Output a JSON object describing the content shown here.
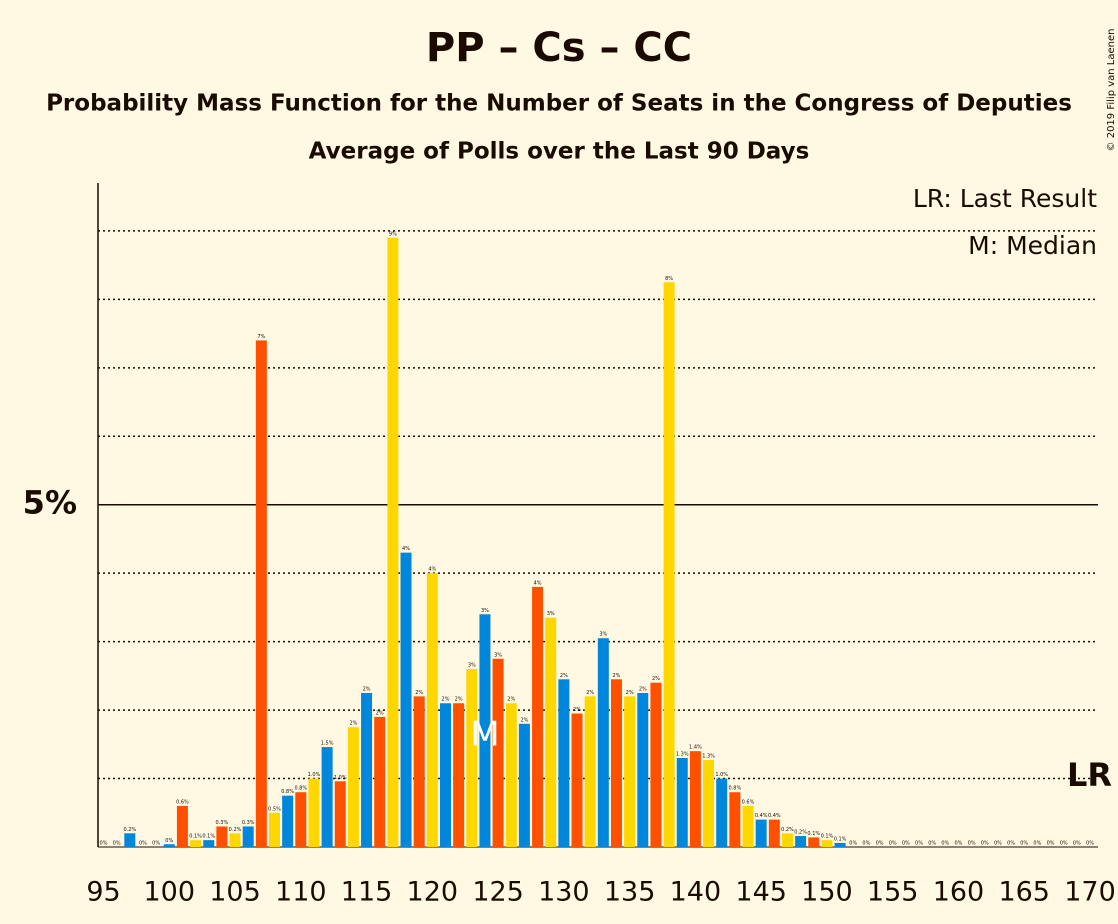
{
  "chart_data": {
    "type": "bar",
    "title": "PP – Cs – CC",
    "subtitle": "Probability Mass Function for the Number of Seats in the Congress of Deputies",
    "subtitle2": "Average of Polls over the Last 90 Days",
    "copyright": "© 2019 Filip van Laenen",
    "legend": [
      "LR: Last Result",
      "M: Median"
    ],
    "last_result_label": "LR",
    "median_label": "M",
    "median": 124,
    "x": [
      95,
      96,
      97,
      98,
      99,
      100,
      101,
      102,
      103,
      104,
      105,
      106,
      107,
      108,
      109,
      110,
      111,
      112,
      113,
      114,
      115,
      116,
      117,
      118,
      119,
      120,
      121,
      122,
      123,
      124,
      125,
      126,
      127,
      128,
      129,
      130,
      131,
      132,
      133,
      134,
      135,
      136,
      137,
      138,
      139,
      140,
      141,
      142,
      143,
      144,
      145,
      146,
      147,
      148,
      149,
      150,
      151,
      152,
      153,
      154,
      155,
      156,
      157,
      158,
      159,
      160,
      161,
      162,
      163,
      164,
      165,
      166,
      167,
      168,
      169,
      170
    ],
    "values": [
      0,
      0,
      0.2,
      0,
      0,
      0.04,
      0.6,
      0.1,
      0.1,
      0.3,
      0.2,
      0.3,
      7.4,
      0.5,
      0.75,
      0.8,
      1.0,
      1.46,
      0.96,
      1.75,
      2.25,
      1.9,
      8.9,
      4.3,
      2.2,
      4.0,
      2.1,
      2.1,
      2.6,
      3.4,
      2.75,
      2.1,
      1.8,
      3.8,
      3.35,
      2.45,
      1.95,
      2.2,
      3.05,
      2.45,
      2.2,
      2.25,
      2.4,
      8.25,
      1.3,
      1.4,
      1.27,
      1.0,
      0.8,
      0.6,
      0.4,
      0.4,
      0.2,
      0.16,
      0.14,
      0.1,
      0.06,
      0,
      0,
      0,
      0,
      0,
      0,
      0,
      0,
      0,
      0,
      0,
      0,
      0,
      0,
      0,
      0,
      0,
      0,
      0
    ],
    "value_labels": [
      "0%",
      "0%",
      "0.2%",
      "0%",
      "0%",
      "0%",
      "0.6%",
      "0.1%",
      "0.1%",
      "0.3%",
      "0.2%",
      "0.3%",
      "7%",
      "0.5%",
      "0.8%",
      "0.8%",
      "1.0%",
      "1.5%",
      "1.0%",
      "2%",
      "2%",
      "2%",
      "9%",
      "4%",
      "2%",
      "4%",
      "2%",
      "2%",
      "3%",
      "3%",
      "3%",
      "2%",
      "2%",
      "4%",
      "3%",
      "2%",
      "2%",
      "2%",
      "3%",
      "2%",
      "2%",
      "2%",
      "2%",
      "8%",
      "1.3%",
      "1.4%",
      "1.3%",
      "1.0%",
      "0.8%",
      "0.6%",
      "0.4%",
      "0.4%",
      "0.2%",
      "0.2%",
      "0.1%",
      "0.1%",
      "0.1%",
      "0%",
      "0%",
      "0%",
      "0%",
      "0%",
      "0%",
      "0%",
      "0%",
      "0%",
      "0%",
      "0%",
      "0%",
      "0%",
      "0%",
      "0%",
      "0%",
      "0%",
      "0%",
      "0%"
    ],
    "palette": [
      "#ffd700",
      "#0087dc",
      "#ff5000"
    ],
    "xlim": [
      95,
      170
    ],
    "xticks": [
      95,
      100,
      105,
      110,
      115,
      120,
      125,
      130,
      135,
      140,
      145,
      150,
      155,
      160,
      165,
      170
    ],
    "ylim": [
      0,
      9.7
    ],
    "yticks": [
      {
        "value": 5,
        "label": "5%"
      }
    ],
    "minor_gridlines": [
      1,
      2,
      3,
      4,
      6,
      7,
      8,
      9
    ]
  }
}
